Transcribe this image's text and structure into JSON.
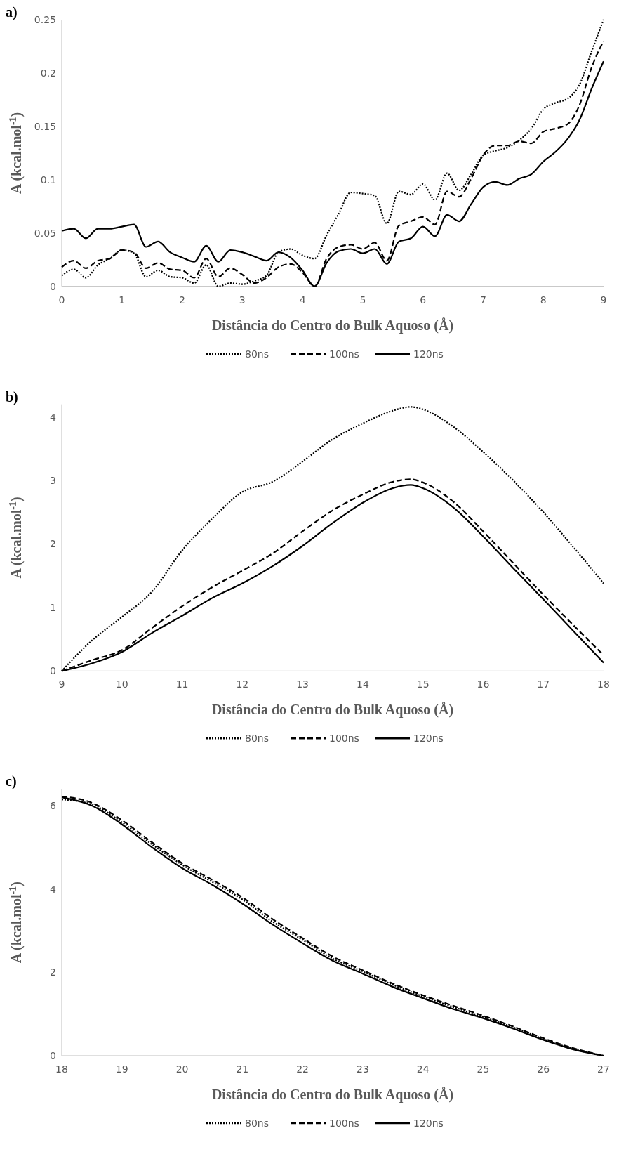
{
  "chart_data": [
    {
      "type": "line",
      "title": "a)",
      "xlabel": "Distância do Centro do Bulk Aquoso (Å)",
      "ylabel": "A (kcal.mol$^{-1}$)",
      "xlim": [
        0,
        9
      ],
      "xticks": [
        0,
        1,
        2,
        3,
        4,
        5,
        6,
        7,
        8,
        9
      ],
      "ylim": [
        0,
        0.25
      ],
      "yticks": [
        0,
        0.05,
        0.1,
        0.15,
        0.2,
        0.25
      ],
      "grid": false,
      "legend": "bottom",
      "x": [
        0,
        0.2,
        0.4,
        0.6,
        0.8,
        1,
        1.2,
        1.4,
        1.6,
        1.8,
        2,
        2.2,
        2.4,
        2.6,
        2.8,
        3,
        3.2,
        3.4,
        3.6,
        3.8,
        4,
        4.2,
        4.4,
        4.6,
        4.8,
        5,
        5.2,
        5.4,
        5.6,
        5.8,
        6,
        6.2,
        6.4,
        6.6,
        6.8,
        7,
        7.2,
        7.4,
        7.6,
        7.8,
        8,
        8.2,
        8.4,
        8.6,
        8.8,
        9
      ],
      "series": [
        {
          "name": "80ns",
          "color": "#000000",
          "line_style": "dotted",
          "values": [
            0.01,
            0.016,
            0.008,
            0.02,
            0.026,
            0.034,
            0.031,
            0.009,
            0.015,
            0.009,
            0.008,
            0.003,
            0.02,
            0,
            0.003,
            0.002,
            0.005,
            0.01,
            0.032,
            0.035,
            0.029,
            0.026,
            0.048,
            0.068,
            0.088,
            0.087,
            0.085,
            0.059,
            0.089,
            0.086,
            0.096,
            0.081,
            0.106,
            0.09,
            0.105,
            0.123,
            0.127,
            0.13,
            0.137,
            0.148,
            0.166,
            0.172,
            0.176,
            0.189,
            0.22,
            0.25
          ]
        },
        {
          "name": "100ns",
          "color": "#000000",
          "line_style": "dashed",
          "values": [
            0.018,
            0.024,
            0.017,
            0.024,
            0.026,
            0.034,
            0.032,
            0.017,
            0.022,
            0.016,
            0.015,
            0.008,
            0.026,
            0.009,
            0.017,
            0.011,
            0.003,
            0.008,
            0.018,
            0.021,
            0.013,
            0,
            0.026,
            0.037,
            0.039,
            0.035,
            0.041,
            0.024,
            0.057,
            0.061,
            0.065,
            0.058,
            0.089,
            0.084,
            0.101,
            0.123,
            0.132,
            0.132,
            0.136,
            0.134,
            0.145,
            0.148,
            0.152,
            0.17,
            0.205,
            0.23
          ]
        },
        {
          "name": "120ns",
          "color": "#000000",
          "line_style": "solid",
          "values": [
            0.052,
            0.054,
            0.045,
            0.054,
            0.054,
            0.056,
            0.058,
            0.037,
            0.042,
            0.032,
            0.027,
            0.023,
            0.038,
            0.023,
            0.034,
            0.032,
            0.028,
            0.024,
            0.032,
            0.027,
            0.015,
            0,
            0.022,
            0.033,
            0.035,
            0.031,
            0.035,
            0.021,
            0.042,
            0.045,
            0.056,
            0.047,
            0.067,
            0.061,
            0.077,
            0.093,
            0.098,
            0.095,
            0.101,
            0.105,
            0.117,
            0.126,
            0.138,
            0.156,
            0.185,
            0.211
          ]
        }
      ]
    },
    {
      "type": "line",
      "title": "b)",
      "xlabel": "Distância do Centro do Bulk Aquoso (Å)",
      "ylabel": "A (kcal.mol$^{-1}$)",
      "xlim": [
        9,
        18
      ],
      "xticks": [
        9,
        10,
        11,
        12,
        13,
        14,
        15,
        16,
        17,
        18
      ],
      "ylim": [
        0,
        4.2
      ],
      "yticks": [
        0,
        1,
        2,
        3,
        4
      ],
      "grid": false,
      "legend": "bottom",
      "x": [
        9,
        9.5,
        10,
        10.5,
        11,
        11.5,
        12,
        12.5,
        13,
        13.5,
        14,
        14.5,
        14.8,
        15,
        15.5,
        16,
        16.5,
        17,
        17.5,
        18
      ],
      "series": [
        {
          "name": "80ns",
          "color": "#000000",
          "line_style": "dotted",
          "values": [
            0,
            0.48,
            0.85,
            1.25,
            1.9,
            2.4,
            2.82,
            2.98,
            3.3,
            3.65,
            3.9,
            4.1,
            4.16,
            4.12,
            3.85,
            3.45,
            3,
            2.5,
            1.95,
            1.38
          ]
        },
        {
          "name": "100ns",
          "color": "#000000",
          "line_style": "dashed",
          "values": [
            0,
            0.17,
            0.33,
            0.68,
            1.02,
            1.32,
            1.58,
            1.85,
            2.2,
            2.53,
            2.78,
            2.98,
            3.02,
            2.97,
            2.67,
            2.2,
            1.7,
            1.2,
            0.72,
            0.25
          ]
        },
        {
          "name": "120ns",
          "color": "#000000",
          "line_style": "solid",
          "values": [
            0,
            0.12,
            0.3,
            0.6,
            0.87,
            1.15,
            1.38,
            1.65,
            1.97,
            2.33,
            2.65,
            2.88,
            2.93,
            2.88,
            2.58,
            2.12,
            1.62,
            1.13,
            0.63,
            0.13
          ]
        }
      ]
    },
    {
      "type": "line",
      "title": "c)",
      "xlabel": "Distância do Centro do Bulk Aquoso (Å)",
      "ylabel": "A (kcal.mol$^{-1}$)",
      "xlim": [
        18,
        27
      ],
      "xticks": [
        18,
        19,
        20,
        21,
        22,
        23,
        24,
        25,
        26,
        27
      ],
      "ylim": [
        0,
        6.4
      ],
      "yticks": [
        0,
        2,
        4,
        6
      ],
      "grid": false,
      "legend": "bottom",
      "x": [
        18,
        18.5,
        19,
        19.5,
        20,
        20.5,
        21,
        21.5,
        22,
        22.5,
        23,
        23.5,
        24,
        24.5,
        25,
        25.5,
        26,
        26.5,
        27
      ],
      "series": [
        {
          "name": "80ns",
          "color": "#000000",
          "line_style": "dotted",
          "values": [
            6.15,
            6.03,
            5.6,
            5.07,
            4.58,
            4.17,
            3.75,
            3.22,
            2.78,
            2.33,
            2.02,
            1.7,
            1.42,
            1.17,
            0.93,
            0.68,
            0.4,
            0.16,
            0
          ]
        },
        {
          "name": "100ns",
          "color": "#000000",
          "line_style": "dashed",
          "values": [
            6.22,
            6.07,
            5.65,
            5.12,
            4.62,
            4.22,
            3.8,
            3.28,
            2.82,
            2.38,
            2.05,
            1.73,
            1.45,
            1.2,
            0.96,
            0.7,
            0.42,
            0.18,
            0
          ]
        },
        {
          "name": "120ns",
          "color": "#000000",
          "line_style": "solid",
          "values": [
            6.2,
            6,
            5.55,
            5,
            4.5,
            4.1,
            3.65,
            3.15,
            2.7,
            2.28,
            1.97,
            1.65,
            1.38,
            1.12,
            0.9,
            0.65,
            0.38,
            0.15,
            0
          ]
        }
      ]
    }
  ]
}
